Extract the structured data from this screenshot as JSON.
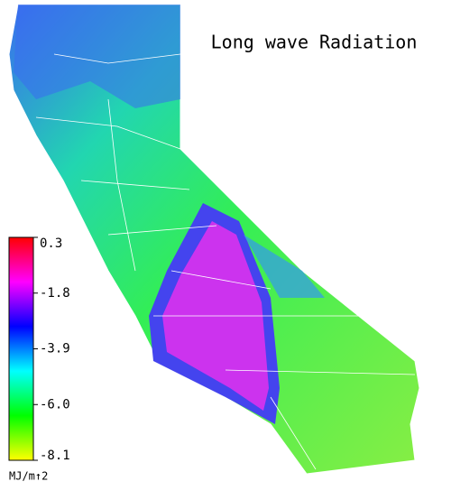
{
  "title": "Long wave Radiation",
  "colorbar": {
    "lim": [
      -8.1,
      0.3
    ],
    "ticks": [
      0.3,
      -1.8,
      -3.9,
      {
        "value": -6,
        "label": "-6.0"
      },
      -8.1
    ],
    "colors": [
      "#ffff00",
      "#00ff00",
      "#00ffff",
      "#0000ff",
      "#ff00ff",
      "#ff0000"
    ],
    "unit": "MJ/m↑2"
  }
}
